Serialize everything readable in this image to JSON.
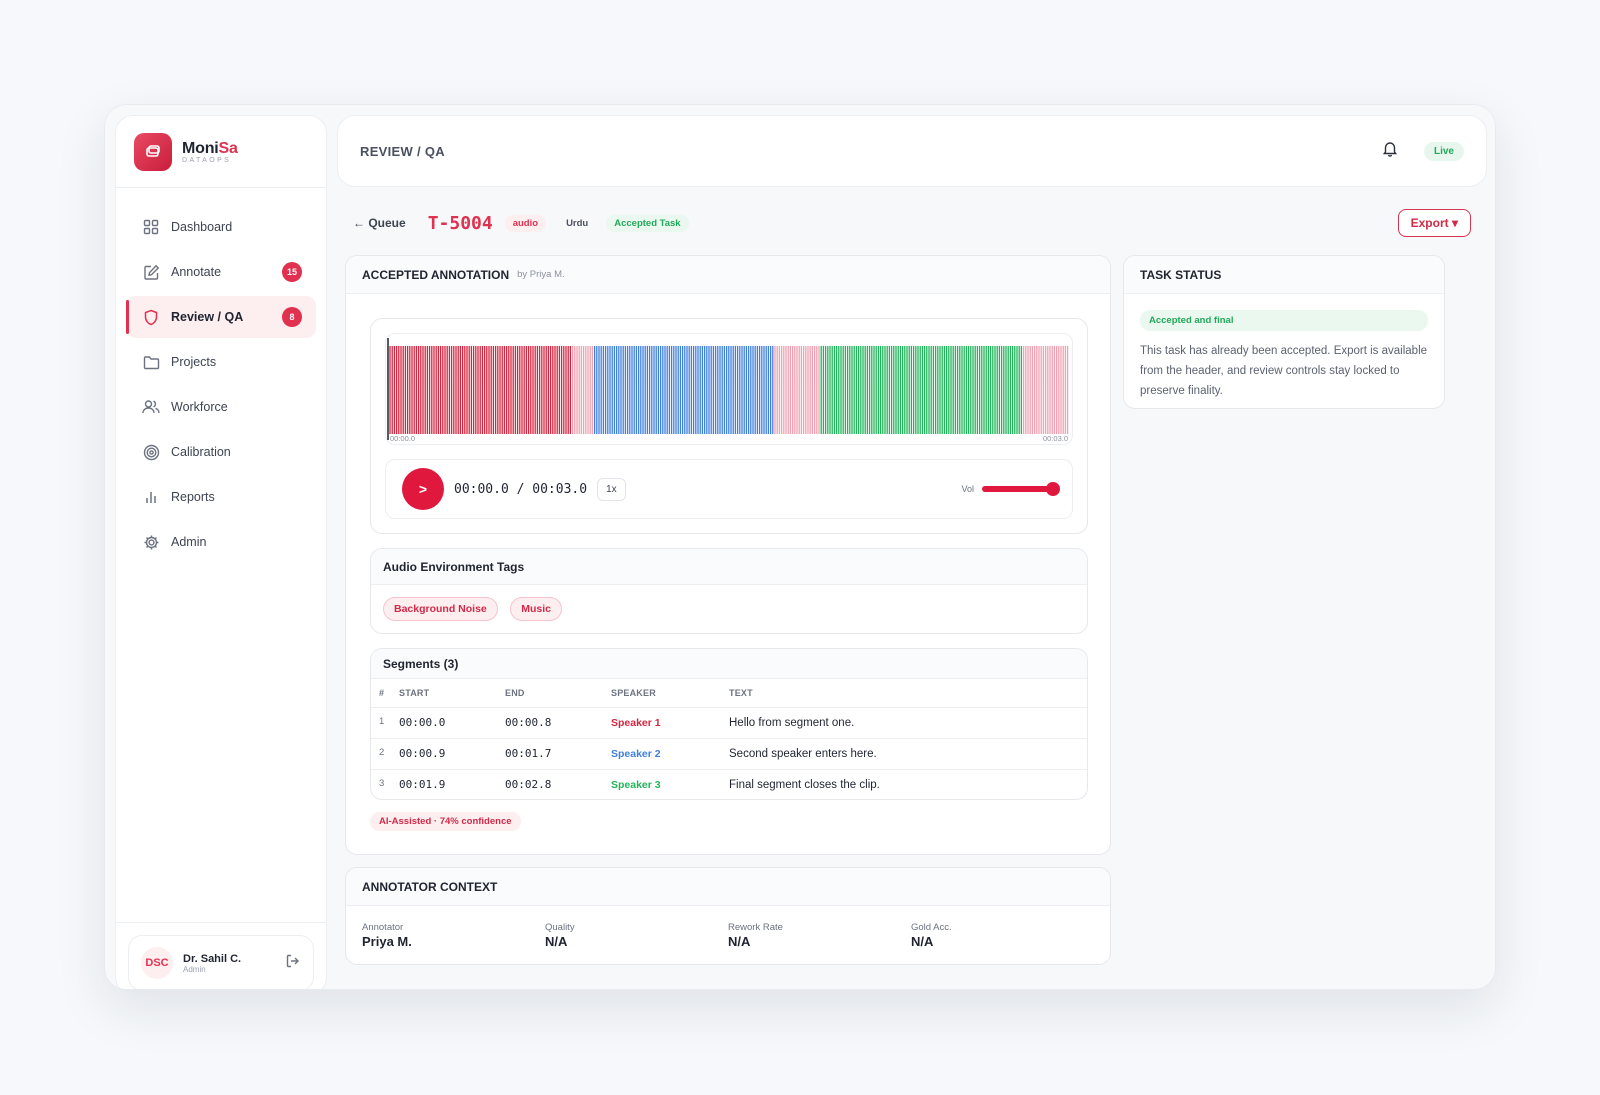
{
  "brand": {
    "name_main": "Moni",
    "name_accent": "Sa",
    "subtitle": "DATAOPS",
    "logo_icon": "stack-icon"
  },
  "sidebar": {
    "items": [
      {
        "label": "Dashboard",
        "icon": "grid-icon"
      },
      {
        "label": "Annotate",
        "icon": "edit-icon",
        "badge": "15"
      },
      {
        "label": "Review / QA",
        "icon": "shield-icon",
        "badge": "8",
        "active": true
      },
      {
        "label": "Projects",
        "icon": "folder-icon"
      },
      {
        "label": "Workforce",
        "icon": "users-icon"
      },
      {
        "label": "Calibration",
        "icon": "target-icon"
      },
      {
        "label": "Reports",
        "icon": "bar-chart-icon"
      },
      {
        "label": "Admin",
        "icon": "gear-icon"
      }
    ],
    "user": {
      "initials": "DSC",
      "name": "Dr. Sahil C.",
      "role": "Admin"
    }
  },
  "header": {
    "breadcrumb": "REVIEW / QA",
    "status": "Live"
  },
  "task": {
    "back_label": "← Queue",
    "id": "T-5004",
    "type": "audio",
    "language": "Urdu",
    "state": "Accepted Task",
    "export_label": "Export ▾"
  },
  "annotation": {
    "title": "ACCEPTED ANNOTATION",
    "by": "by Priya M.",
    "waveform": {
      "start_label": "00:00.0",
      "end_label": "00:03.0"
    },
    "player": {
      "play_label": ">",
      "time": "00:00.0 / 00:03.0",
      "speed": "1x",
      "vol_label": "Vol",
      "volume": 1.0
    },
    "env_tags": {
      "title": "Audio Environment Tags",
      "tags": [
        "Background Noise",
        "Music"
      ]
    },
    "segments": {
      "title": "Segments (3)",
      "columns": [
        "#",
        "START",
        "END",
        "SPEAKER",
        "TEXT"
      ],
      "rows": [
        {
          "n": "1",
          "start": "00:00.0",
          "end": "00:00.8",
          "speaker": "Speaker 1",
          "text": "Hello from segment one."
        },
        {
          "n": "2",
          "start": "00:00.9",
          "end": "00:01.7",
          "speaker": "Speaker 2",
          "text": "Second speaker enters here."
        },
        {
          "n": "3",
          "start": "00:01.9",
          "end": "00:02.8",
          "speaker": "Speaker 3",
          "text": "Final segment closes the clip."
        }
      ]
    },
    "ai_label": "AI-Assisted · 74% confidence"
  },
  "task_status": {
    "title": "TASK STATUS",
    "pill": "Accepted and final",
    "text": "This task has already been accepted. Export is available from the header, and review controls stay locked to preserve finality."
  },
  "context": {
    "title": "ANNOTATOR CONTEXT",
    "fields": [
      {
        "label": "Annotator",
        "value": "Priya M."
      },
      {
        "label": "Quality",
        "value": "N/A"
      },
      {
        "label": "Rework Rate",
        "value": "N/A"
      },
      {
        "label": "Gold Acc.",
        "value": "N/A"
      }
    ]
  },
  "colors": {
    "accent": "#e0314f",
    "speaker1": "#d4253f",
    "speaker2": "#3f7fdc",
    "speaker3": "#22b45a",
    "gap": "#f0a0b0"
  }
}
